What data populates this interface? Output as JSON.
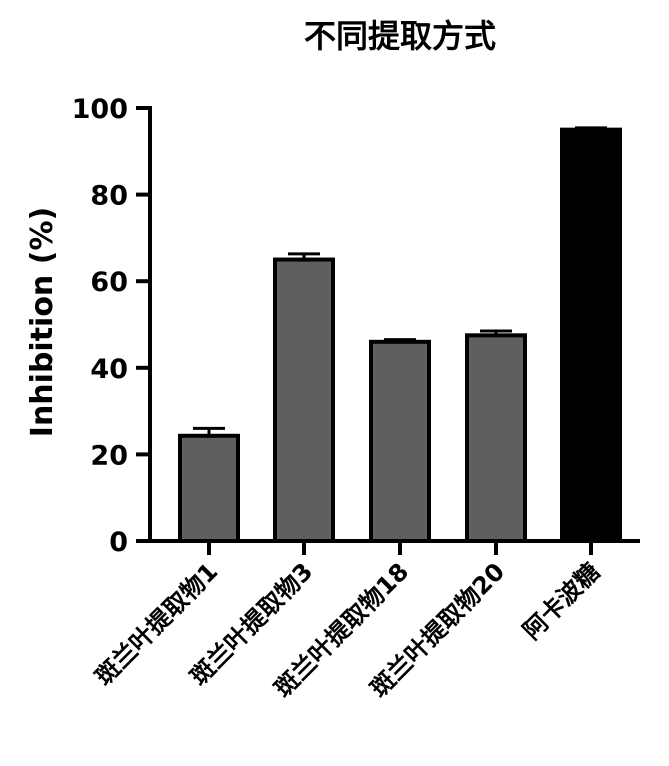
{
  "chart_data": {
    "type": "bar",
    "title": "不同提取方式",
    "xlabel": "",
    "ylabel": "Inhibition (%)",
    "ylim": [
      0,
      100
    ],
    "yticks": [
      0,
      20,
      40,
      60,
      80,
      100
    ],
    "categories": [
      "斑兰叶提取物1",
      "斑兰叶提取物3",
      "斑兰叶提取物18",
      "斑兰叶提取物20",
      "阿卡波糖"
    ],
    "values": [
      24.3,
      65.0,
      46.0,
      47.5,
      95.0
    ],
    "errors": [
      1.7,
      1.3,
      0.5,
      1.0,
      0.4
    ],
    "colors": [
      "#5f5f5f",
      "#5f5f5f",
      "#5f5f5f",
      "#5f5f5f",
      "#000000"
    ],
    "grid": false
  }
}
